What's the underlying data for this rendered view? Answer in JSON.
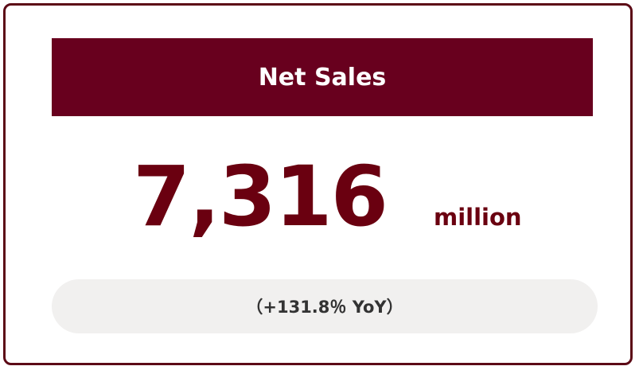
{
  "card": {
    "title": "Net Sales",
    "value": "7,316",
    "unit": "million",
    "change": "（+131.8％ YoY）"
  }
}
